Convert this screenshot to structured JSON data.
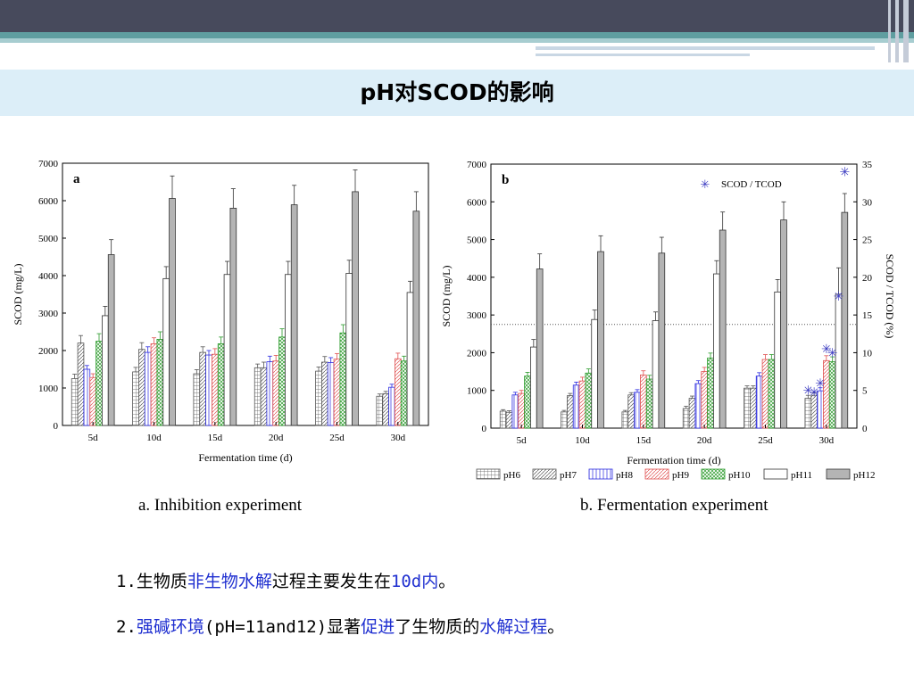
{
  "slide": {
    "title": "pH对SCOD的影响",
    "colors": {
      "header_dark": "#474a5c",
      "header_teal": "#5f9ea0",
      "title_band": "#dceef8",
      "highlight_blue": "#1f2fd0"
    }
  },
  "legend": {
    "entries": [
      "pH6",
      "pH7",
      "pH8",
      "pH9",
      "pH10",
      "pH11",
      "pH12"
    ],
    "colors": [
      "#555555",
      "#555555",
      "#2a2ae0",
      "#e05050",
      "#2a9a2a",
      "#333333",
      "#333333"
    ]
  },
  "captions": {
    "a": "a. Inhibition experiment",
    "b": "b. Fermentation experiment"
  },
  "bullets": [
    {
      "segments": [
        {
          "text": "1.生物质",
          "blue": false
        },
        {
          "text": "非生物水解",
          "blue": true
        },
        {
          "text": "过程主要发生在",
          "blue": false
        },
        {
          "text": "10d内",
          "blue": true
        },
        {
          "text": "。",
          "blue": false
        }
      ]
    },
    {
      "segments": [
        {
          "text": "2.",
          "blue": false
        },
        {
          "text": "强碱环境",
          "blue": true
        },
        {
          "text": "(pH=11and12)显著",
          "blue": false
        },
        {
          "text": "促进",
          "blue": true
        },
        {
          "text": "了生物质的",
          "blue": false
        },
        {
          "text": "水解过程",
          "blue": true
        },
        {
          "text": "。",
          "blue": false
        }
      ]
    }
  ],
  "chart_data": [
    {
      "type": "bar",
      "panel_label": "a",
      "xlabel": "Fermentation time (d)",
      "ylabel": "SCOD (mg/L)",
      "ylim": [
        0,
        7000
      ],
      "yticks": [
        0,
        1000,
        2000,
        3000,
        4000,
        5000,
        6000,
        7000
      ],
      "categories": [
        "5d",
        "10d",
        "15d",
        "20d",
        "25d",
        "30d"
      ],
      "series": [
        {
          "name": "pH6",
          "values": [
            1250,
            1430,
            1380,
            1540,
            1450,
            780
          ],
          "errors": [
            120,
            120,
            110,
            100,
            110,
            60
          ]
        },
        {
          "name": "pH7",
          "values": [
            2200,
            2030,
            1950,
            1540,
            1690,
            850
          ],
          "errors": [
            200,
            180,
            150,
            150,
            150,
            60
          ]
        },
        {
          "name": "pH8",
          "values": [
            1500,
            1950,
            1880,
            1700,
            1680,
            1020
          ],
          "errors": [
            100,
            150,
            120,
            150,
            130,
            80
          ]
        },
        {
          "name": "pH9",
          "values": [
            1280,
            2180,
            1900,
            1720,
            1770,
            1780
          ],
          "errors": [
            100,
            160,
            150,
            150,
            150,
            150
          ]
        },
        {
          "name": "pH10",
          "values": [
            2250,
            2300,
            2180,
            2360,
            2470,
            1720
          ],
          "errors": [
            200,
            200,
            180,
            220,
            220,
            130
          ]
        },
        {
          "name": "pH11",
          "values": [
            2930,
            3920,
            4030,
            4030,
            4060,
            3550
          ],
          "errors": [
            250,
            320,
            350,
            350,
            350,
            300
          ]
        },
        {
          "name": "pH12",
          "values": [
            4560,
            6060,
            5800,
            5890,
            6240,
            5720
          ],
          "errors": [
            400,
            600,
            520,
            520,
            580,
            520
          ]
        }
      ]
    },
    {
      "type": "bar",
      "panel_label": "b",
      "xlabel": "Fermentation time (d)",
      "ylabel": "SCOD (mg/L)",
      "y2label": "SCOD / TCOD (%)",
      "ylim": [
        0,
        7000
      ],
      "yticks": [
        0,
        1000,
        2000,
        3000,
        4000,
        5000,
        6000,
        7000
      ],
      "y2lim": [
        0,
        35
      ],
      "y2ticks": [
        0,
        5,
        10,
        15,
        20,
        25,
        30,
        35
      ],
      "categories": [
        "5d",
        "10d",
        "15d",
        "20d",
        "25d",
        "30d"
      ],
      "series": [
        {
          "name": "pH6",
          "values": [
            450,
            430,
            430,
            520,
            1060,
            790
          ],
          "errors": [
            40,
            40,
            40,
            60,
            60,
            80
          ]
        },
        {
          "name": "pH7",
          "values": [
            420,
            860,
            880,
            790,
            1060,
            870
          ],
          "errors": [
            40,
            60,
            60,
            60,
            60,
            60
          ]
        },
        {
          "name": "pH8",
          "values": [
            880,
            1140,
            950,
            1180,
            1380,
            990
          ],
          "errors": [
            70,
            80,
            70,
            80,
            90,
            80
          ]
        },
        {
          "name": "pH9",
          "values": [
            920,
            1250,
            1410,
            1500,
            1820,
            1790
          ],
          "errors": [
            80,
            100,
            110,
            110,
            130,
            130
          ]
        },
        {
          "name": "pH10",
          "values": [
            1380,
            1460,
            1300,
            1860,
            1820,
            1760
          ],
          "errors": [
            100,
            110,
            100,
            130,
            130,
            130
          ]
        },
        {
          "name": "pH11",
          "values": [
            2150,
            2880,
            2850,
            4090,
            3610,
            3550
          ],
          "errors": [
            200,
            250,
            230,
            350,
            330,
            700
          ]
        },
        {
          "name": "pH12",
          "values": [
            4220,
            4680,
            4640,
            5250,
            5520,
            5720
          ],
          "errors": [
            400,
            420,
            420,
            480,
            480,
            500
          ]
        }
      ],
      "marker_series": {
        "name": "SCOD / TCOD",
        "axis": "right",
        "category": "30d",
        "values": [
          5,
          4.8,
          6,
          10.5,
          10,
          17.5,
          34
        ]
      },
      "reference_line": {
        "axis": "left",
        "value": 2750,
        "style": "dotted"
      }
    }
  ]
}
